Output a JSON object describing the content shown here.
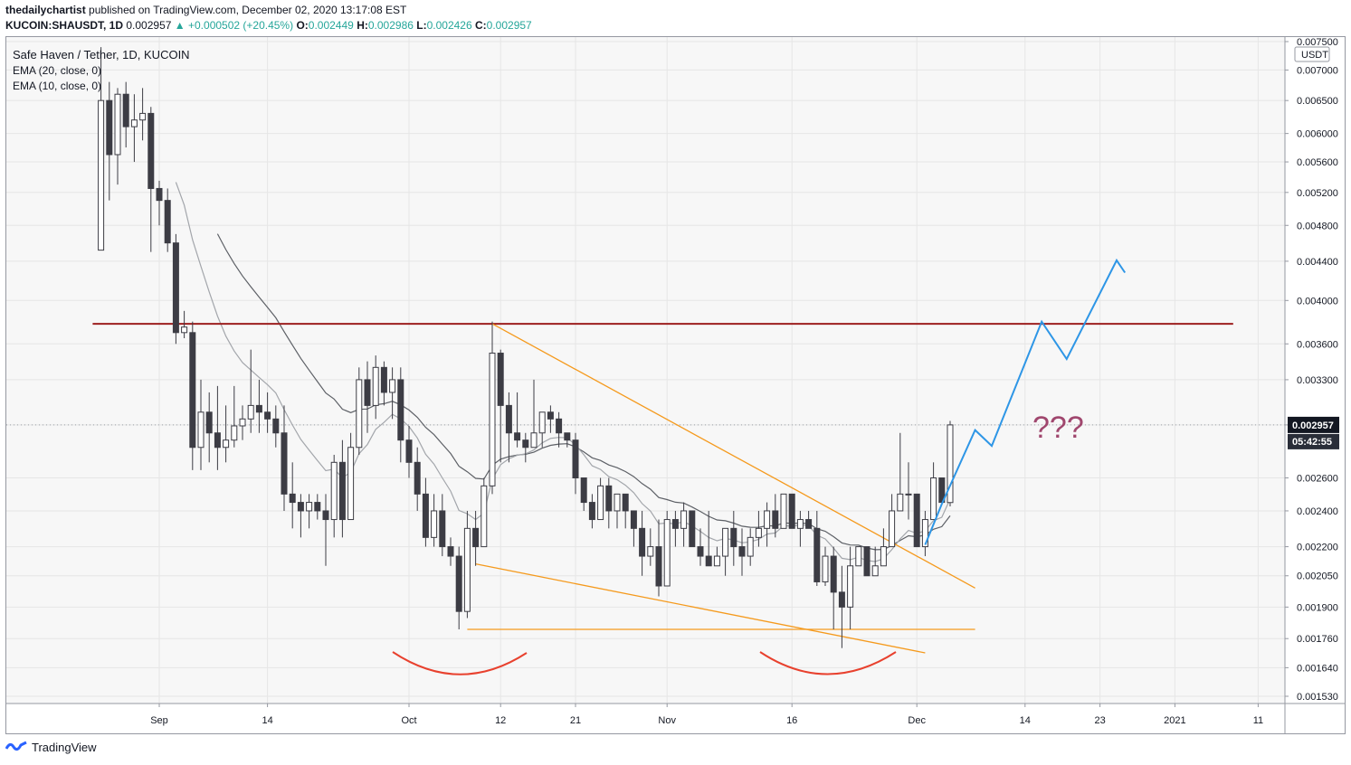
{
  "header": {
    "author": "thedailychartist",
    "published_text": "published on TradingView.com, December 02, 2020 13:17:08 EST",
    "symbol": "KUCOIN:SHAUSDT, 1D",
    "last": "0.002957",
    "change": "+0.000502 (+20.45%)",
    "o_label": "O:",
    "o": "0.002449",
    "h_label": "H:",
    "h": "0.002986",
    "l_label": "L:",
    "l": "0.002426",
    "c_label": "C:",
    "c": "0.002957"
  },
  "legend": {
    "title": "Safe Haven / Tether, 1D, KUCOIN",
    "ema20": "EMA (20, close, 0)",
    "ema10": "EMA (10, close, 0)"
  },
  "price_axis": {
    "unit": "USDT",
    "current_price": "0.002957",
    "countdown": "05:42:55"
  },
  "annotation": {
    "question": "???"
  },
  "footer": {
    "brand": "TradingView"
  },
  "colors": {
    "up_candle": "#ffffff",
    "down_candle": "#3c3c44",
    "resistance": "#9c1f1f",
    "wedge": "#f59a1d",
    "projection": "#2e96e6",
    "arcs": "#e8412e",
    "question": "#a0476e",
    "current_tag": "#131722"
  },
  "chart_data": {
    "type": "candlestick",
    "scale": "log",
    "ylim": [
      0.00149,
      0.0076
    ],
    "yticks": [
      "0.007500",
      "0.007000",
      "0.006500",
      "0.006000",
      "0.005600",
      "0.005200",
      "0.004800",
      "0.004400",
      "0.004000",
      "0.003600",
      "0.003300",
      "0.002957",
      "0.002600",
      "0.002400",
      "0.002200",
      "0.002050",
      "0.001900",
      "0.001760",
      "0.001640",
      "0.001530"
    ],
    "xticks": [
      {
        "label": "Sep",
        "date": "2020-09-01"
      },
      {
        "label": "14",
        "date": "2020-09-14"
      },
      {
        "label": "Oct",
        "date": "2020-10-01"
      },
      {
        "label": "12",
        "date": "2020-10-12"
      },
      {
        "label": "21",
        "date": "2020-10-21"
      },
      {
        "label": "Nov",
        "date": "2020-11-01"
      },
      {
        "label": "16",
        "date": "2020-11-16"
      },
      {
        "label": "Dec",
        "date": "2020-12-01"
      },
      {
        "label": "14",
        "date": "2020-12-14"
      },
      {
        "label": "23",
        "date": "2020-12-23"
      },
      {
        "label": "2021",
        "date": "2021-01-01"
      },
      {
        "label": "11",
        "date": "2021-01-11"
      }
    ],
    "candles": [
      {
        "date": "2020-08-25",
        "o": 0.00452,
        "h": 0.0074,
        "l": 0.00452,
        "c": 0.0065
      },
      {
        "date": "2020-08-26",
        "o": 0.0065,
        "h": 0.0068,
        "l": 0.0051,
        "c": 0.0057
      },
      {
        "date": "2020-08-27",
        "o": 0.0057,
        "h": 0.0067,
        "l": 0.0053,
        "c": 0.0066
      },
      {
        "date": "2020-08-28",
        "o": 0.0066,
        "h": 0.0068,
        "l": 0.0058,
        "c": 0.0061
      },
      {
        "date": "2020-08-29",
        "o": 0.0061,
        "h": 0.0066,
        "l": 0.0056,
        "c": 0.0062
      },
      {
        "date": "2020-08-30",
        "o": 0.0062,
        "h": 0.0067,
        "l": 0.0059,
        "c": 0.0063
      },
      {
        "date": "2020-08-31",
        "o": 0.0063,
        "h": 0.0064,
        "l": 0.0045,
        "c": 0.00525
      },
      {
        "date": "2020-09-01",
        "o": 0.00525,
        "h": 0.00535,
        "l": 0.0048,
        "c": 0.0051
      },
      {
        "date": "2020-09-02",
        "o": 0.0051,
        "h": 0.00525,
        "l": 0.0045,
        "c": 0.0046
      },
      {
        "date": "2020-09-03",
        "o": 0.0046,
        "h": 0.0047,
        "l": 0.0036,
        "c": 0.0037
      },
      {
        "date": "2020-09-04",
        "o": 0.0037,
        "h": 0.0039,
        "l": 0.00365,
        "c": 0.00375
      },
      {
        "date": "2020-09-05",
        "o": 0.0037,
        "h": 0.0038,
        "l": 0.00265,
        "c": 0.0028
      },
      {
        "date": "2020-09-06",
        "o": 0.0028,
        "h": 0.0033,
        "l": 0.00265,
        "c": 0.00305
      },
      {
        "date": "2020-09-07",
        "o": 0.00305,
        "h": 0.0032,
        "l": 0.0027,
        "c": 0.0029
      },
      {
        "date": "2020-09-08",
        "o": 0.0029,
        "h": 0.00325,
        "l": 0.00265,
        "c": 0.0028
      },
      {
        "date": "2020-09-09",
        "o": 0.0028,
        "h": 0.0031,
        "l": 0.0027,
        "c": 0.00285
      },
      {
        "date": "2020-09-10",
        "o": 0.00285,
        "h": 0.00325,
        "l": 0.0028,
        "c": 0.00295
      },
      {
        "date": "2020-09-11",
        "o": 0.00295,
        "h": 0.0031,
        "l": 0.00285,
        "c": 0.003
      },
      {
        "date": "2020-09-12",
        "o": 0.003,
        "h": 0.00355,
        "l": 0.0029,
        "c": 0.0031
      },
      {
        "date": "2020-09-13",
        "o": 0.0031,
        "h": 0.0033,
        "l": 0.0029,
        "c": 0.00305
      },
      {
        "date": "2020-09-14",
        "o": 0.00305,
        "h": 0.0032,
        "l": 0.0029,
        "c": 0.003
      },
      {
        "date": "2020-09-15",
        "o": 0.003,
        "h": 0.0031,
        "l": 0.0028,
        "c": 0.0029
      },
      {
        "date": "2020-09-16",
        "o": 0.0029,
        "h": 0.0031,
        "l": 0.0024,
        "c": 0.0025
      },
      {
        "date": "2020-09-17",
        "o": 0.0025,
        "h": 0.0027,
        "l": 0.0023,
        "c": 0.00245
      },
      {
        "date": "2020-09-18",
        "o": 0.00245,
        "h": 0.0025,
        "l": 0.00225,
        "c": 0.0024
      },
      {
        "date": "2020-09-19",
        "o": 0.0024,
        "h": 0.0025,
        "l": 0.0023,
        "c": 0.00245
      },
      {
        "date": "2020-09-20",
        "o": 0.00245,
        "h": 0.0025,
        "l": 0.00235,
        "c": 0.0024
      },
      {
        "date": "2020-09-21",
        "o": 0.0024,
        "h": 0.0025,
        "l": 0.0021,
        "c": 0.00235
      },
      {
        "date": "2020-09-22",
        "o": 0.00235,
        "h": 0.00275,
        "l": 0.00225,
        "c": 0.0027
      },
      {
        "date": "2020-09-23",
        "o": 0.0027,
        "h": 0.00285,
        "l": 0.00225,
        "c": 0.00235
      },
      {
        "date": "2020-09-24",
        "o": 0.00235,
        "h": 0.0029,
        "l": 0.00235,
        "c": 0.0028
      },
      {
        "date": "2020-09-25",
        "o": 0.0028,
        "h": 0.0034,
        "l": 0.00275,
        "c": 0.0033
      },
      {
        "date": "2020-09-26",
        "o": 0.0033,
        "h": 0.00345,
        "l": 0.0029,
        "c": 0.0031
      },
      {
        "date": "2020-09-27",
        "o": 0.0031,
        "h": 0.0035,
        "l": 0.003,
        "c": 0.0034
      },
      {
        "date": "2020-09-28",
        "o": 0.0034,
        "h": 0.00345,
        "l": 0.0031,
        "c": 0.0032
      },
      {
        "date": "2020-09-29",
        "o": 0.0032,
        "h": 0.0034,
        "l": 0.003,
        "c": 0.0033
      },
      {
        "date": "2020-09-30",
        "o": 0.0033,
        "h": 0.0034,
        "l": 0.0027,
        "c": 0.00285
      },
      {
        "date": "2020-10-01",
        "o": 0.00285,
        "h": 0.00295,
        "l": 0.0026,
        "c": 0.0027
      },
      {
        "date": "2020-10-02",
        "o": 0.0027,
        "h": 0.0028,
        "l": 0.0024,
        "c": 0.0025
      },
      {
        "date": "2020-10-03",
        "o": 0.0025,
        "h": 0.0026,
        "l": 0.0022,
        "c": 0.00225
      },
      {
        "date": "2020-10-04",
        "o": 0.00225,
        "h": 0.0025,
        "l": 0.0022,
        "c": 0.0024
      },
      {
        "date": "2020-10-05",
        "o": 0.0024,
        "h": 0.0025,
        "l": 0.00215,
        "c": 0.0022
      },
      {
        "date": "2020-10-06",
        "o": 0.0022,
        "h": 0.00225,
        "l": 0.0021,
        "c": 0.00215
      },
      {
        "date": "2020-10-07",
        "o": 0.00215,
        "h": 0.0022,
        "l": 0.0018,
        "c": 0.00188
      },
      {
        "date": "2020-10-08",
        "o": 0.00188,
        "h": 0.0024,
        "l": 0.00185,
        "c": 0.0023
      },
      {
        "date": "2020-10-09",
        "o": 0.0023,
        "h": 0.0024,
        "l": 0.0021,
        "c": 0.0022
      },
      {
        "date": "2020-10-10",
        "o": 0.0022,
        "h": 0.0026,
        "l": 0.0022,
        "c": 0.00255
      },
      {
        "date": "2020-10-11",
        "o": 0.00255,
        "h": 0.0038,
        "l": 0.0025,
        "c": 0.00352
      },
      {
        "date": "2020-10-12",
        "o": 0.00352,
        "h": 0.00355,
        "l": 0.0027,
        "c": 0.0031
      },
      {
        "date": "2020-10-13",
        "o": 0.0031,
        "h": 0.0032,
        "l": 0.0027,
        "c": 0.0029
      },
      {
        "date": "2020-10-14",
        "o": 0.0029,
        "h": 0.0032,
        "l": 0.0028,
        "c": 0.00285
      },
      {
        "date": "2020-10-15",
        "o": 0.00285,
        "h": 0.0029,
        "l": 0.0027,
        "c": 0.0028
      },
      {
        "date": "2020-10-16",
        "o": 0.0028,
        "h": 0.0033,
        "l": 0.0028,
        "c": 0.0029
      },
      {
        "date": "2020-10-17",
        "o": 0.0029,
        "h": 0.00305,
        "l": 0.0028,
        "c": 0.00305
      },
      {
        "date": "2020-10-18",
        "o": 0.00305,
        "h": 0.0031,
        "l": 0.0029,
        "c": 0.003
      },
      {
        "date": "2020-10-19",
        "o": 0.003,
        "h": 0.00305,
        "l": 0.0028,
        "c": 0.0029
      },
      {
        "date": "2020-10-20",
        "o": 0.0029,
        "h": 0.0029,
        "l": 0.0028,
        "c": 0.00285
      },
      {
        "date": "2020-10-21",
        "o": 0.00285,
        "h": 0.0029,
        "l": 0.0025,
        "c": 0.0026
      },
      {
        "date": "2020-10-22",
        "o": 0.0026,
        "h": 0.0026,
        "l": 0.0024,
        "c": 0.00245
      },
      {
        "date": "2020-10-23",
        "o": 0.00245,
        "h": 0.0025,
        "l": 0.0023,
        "c": 0.00235
      },
      {
        "date": "2020-10-24",
        "o": 0.00235,
        "h": 0.0026,
        "l": 0.00235,
        "c": 0.00255
      },
      {
        "date": "2020-10-25",
        "o": 0.00255,
        "h": 0.0026,
        "l": 0.0023,
        "c": 0.0024
      },
      {
        "date": "2020-10-26",
        "o": 0.0024,
        "h": 0.0025,
        "l": 0.0023,
        "c": 0.0025
      },
      {
        "date": "2020-10-27",
        "o": 0.0025,
        "h": 0.0025,
        "l": 0.0023,
        "c": 0.0024
      },
      {
        "date": "2020-10-28",
        "o": 0.0024,
        "h": 0.0024,
        "l": 0.0022,
        "c": 0.0023
      },
      {
        "date": "2020-10-29",
        "o": 0.0023,
        "h": 0.0024,
        "l": 0.00205,
        "c": 0.00215
      },
      {
        "date": "2020-10-30",
        "o": 0.00215,
        "h": 0.0023,
        "l": 0.0021,
        "c": 0.0022
      },
      {
        "date": "2020-10-31",
        "o": 0.0022,
        "h": 0.00235,
        "l": 0.00195,
        "c": 0.002
      },
      {
        "date": "2020-11-01",
        "o": 0.002,
        "h": 0.0024,
        "l": 0.002,
        "c": 0.00235
      },
      {
        "date": "2020-11-02",
        "o": 0.00235,
        "h": 0.0024,
        "l": 0.0022,
        "c": 0.0023
      },
      {
        "date": "2020-11-03",
        "o": 0.0023,
        "h": 0.00245,
        "l": 0.0022,
        "c": 0.0024
      },
      {
        "date": "2020-11-04",
        "o": 0.0024,
        "h": 0.0024,
        "l": 0.0022,
        "c": 0.0022
      },
      {
        "date": "2020-11-05",
        "o": 0.0022,
        "h": 0.0023,
        "l": 0.0021,
        "c": 0.00215
      },
      {
        "date": "2020-11-06",
        "o": 0.00215,
        "h": 0.0024,
        "l": 0.0021,
        "c": 0.0021
      },
      {
        "date": "2020-11-07",
        "o": 0.0021,
        "h": 0.0022,
        "l": 0.0021,
        "c": 0.00215
      },
      {
        "date": "2020-11-08",
        "o": 0.00215,
        "h": 0.0023,
        "l": 0.00205,
        "c": 0.0023
      },
      {
        "date": "2020-11-09",
        "o": 0.0023,
        "h": 0.0024,
        "l": 0.0021,
        "c": 0.0022
      },
      {
        "date": "2020-11-10",
        "o": 0.0022,
        "h": 0.0023,
        "l": 0.00205,
        "c": 0.00215
      },
      {
        "date": "2020-11-11",
        "o": 0.00215,
        "h": 0.0023,
        "l": 0.0021,
        "c": 0.00225
      },
      {
        "date": "2020-11-12",
        "o": 0.00225,
        "h": 0.0024,
        "l": 0.0022,
        "c": 0.0023
      },
      {
        "date": "2020-11-13",
        "o": 0.0023,
        "h": 0.00245,
        "l": 0.0022,
        "c": 0.0024
      },
      {
        "date": "2020-11-14",
        "o": 0.0024,
        "h": 0.0025,
        "l": 0.00225,
        "c": 0.0023
      },
      {
        "date": "2020-11-15",
        "o": 0.0023,
        "h": 0.0025,
        "l": 0.0023,
        "c": 0.0025
      },
      {
        "date": "2020-11-16",
        "o": 0.0025,
        "h": 0.0025,
        "l": 0.0023,
        "c": 0.0023
      },
      {
        "date": "2020-11-17",
        "o": 0.0023,
        "h": 0.0024,
        "l": 0.0022,
        "c": 0.00235
      },
      {
        "date": "2020-11-18",
        "o": 0.00235,
        "h": 0.0024,
        "l": 0.0023,
        "c": 0.0023
      },
      {
        "date": "2020-11-19",
        "o": 0.0023,
        "h": 0.0024,
        "l": 0.002,
        "c": 0.00202
      },
      {
        "date": "2020-11-20",
        "o": 0.00202,
        "h": 0.0022,
        "l": 0.002,
        "c": 0.00215
      },
      {
        "date": "2020-11-21",
        "o": 0.00215,
        "h": 0.0022,
        "l": 0.0018,
        "c": 0.00197
      },
      {
        "date": "2020-11-22",
        "o": 0.00197,
        "h": 0.0021,
        "l": 0.00172,
        "c": 0.0019
      },
      {
        "date": "2020-11-23",
        "o": 0.0019,
        "h": 0.0022,
        "l": 0.0018,
        "c": 0.0021
      },
      {
        "date": "2020-11-24",
        "o": 0.0021,
        "h": 0.0022,
        "l": 0.0021,
        "c": 0.0022
      },
      {
        "date": "2020-11-25",
        "o": 0.0022,
        "h": 0.0022,
        "l": 0.0021,
        "c": 0.00205
      },
      {
        "date": "2020-11-26",
        "o": 0.00205,
        "h": 0.0022,
        "l": 0.00205,
        "c": 0.0021
      },
      {
        "date": "2020-11-27",
        "o": 0.0021,
        "h": 0.0023,
        "l": 0.0021,
        "c": 0.0022
      },
      {
        "date": "2020-11-28",
        "o": 0.0022,
        "h": 0.0025,
        "l": 0.0022,
        "c": 0.0024
      },
      {
        "date": "2020-11-29",
        "o": 0.0024,
        "h": 0.0029,
        "l": 0.0024,
        "c": 0.0025
      },
      {
        "date": "2020-11-30",
        "o": 0.0025,
        "h": 0.0027,
        "l": 0.00235,
        "c": 0.0025
      },
      {
        "date": "2020-12-01",
        "o": 0.0025,
        "h": 0.0025,
        "l": 0.0022,
        "c": 0.0022
      },
      {
        "date": "2020-12-02",
        "o": 0.0022,
        "h": 0.0024,
        "l": 0.00215,
        "c": 0.00235
      },
      {
        "date": "2020-12-03",
        "o": 0.00235,
        "h": 0.0027,
        "l": 0.00235,
        "c": 0.0026
      },
      {
        "date": "2020-12-04",
        "o": 0.0026,
        "h": 0.0026,
        "l": 0.00245,
        "c": 0.00245
      },
      {
        "date": "2020-12-05",
        "o": 0.002449,
        "h": 0.002986,
        "l": 0.002426,
        "c": 0.002957
      }
    ],
    "resistance": {
      "price": 0.00378,
      "from": "2020-08-24",
      "to": "2021-01-08"
    },
    "support": {
      "price": 0.0018,
      "from": "2020-10-08",
      "to": "2020-12-08"
    },
    "wedge_upper": [
      {
        "date": "2020-10-11",
        "price": 0.00378
      },
      {
        "date": "2020-12-08",
        "price": 0.00199
      }
    ],
    "wedge_lower": [
      {
        "date": "2020-10-09",
        "price": 0.00211
      },
      {
        "date": "2020-12-02",
        "price": 0.0017
      }
    ],
    "projection": [
      {
        "date": "2020-12-02",
        "price": 0.00221
      },
      {
        "date": "2020-12-04",
        "price": 0.00244
      },
      {
        "date": "2020-12-08",
        "price": 0.00292
      },
      {
        "date": "2020-12-10",
        "price": 0.00281
      },
      {
        "date": "2020-12-16",
        "price": 0.0038
      },
      {
        "date": "2020-12-19",
        "price": 0.00347
      },
      {
        "date": "2020-12-25",
        "price": 0.00441
      },
      {
        "date": "2020-12-26",
        "price": 0.00428
      }
    ]
  }
}
